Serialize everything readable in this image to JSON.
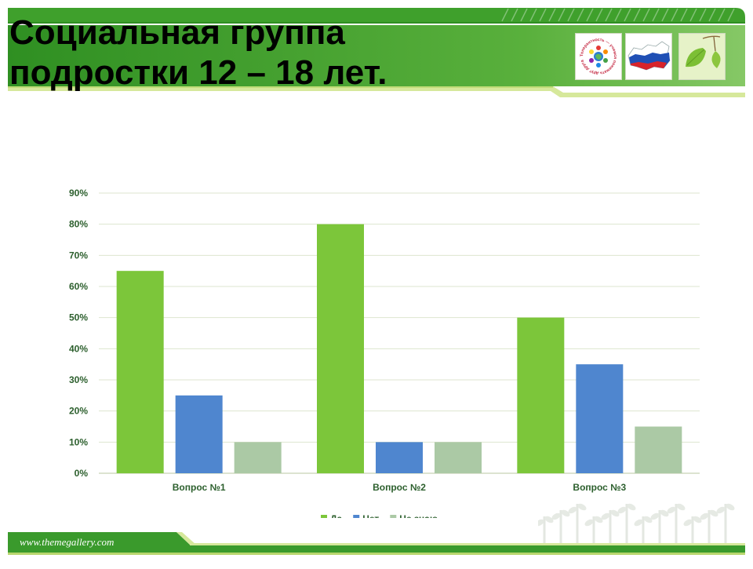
{
  "slide": {
    "title_line1": "Социальная группа",
    "title_line2": "подростки 12 – 18 лет.",
    "footer_url": "www.themegallery.com",
    "logo_ring_text": "Толерантность — учимся понимать друг друга"
  },
  "colors": {
    "header_green": "#3a9a2c",
    "header_light": "#7cc35a",
    "accent_lime": "#d6e89b",
    "series_yes": "#7cc63a",
    "series_no": "#4f86cf",
    "series_dontknow": "#abc9a5",
    "axis_text": "#2c5f2d"
  },
  "chart_data": {
    "type": "bar",
    "categories": [
      "Вопрос №1",
      "Вопрос №2",
      "Вопрос №3"
    ],
    "series": [
      {
        "name": "Да",
        "values": [
          65,
          80,
          50
        ],
        "color": "#7cc63a"
      },
      {
        "name": "Нет",
        "values": [
          25,
          10,
          35
        ],
        "color": "#4f86cf"
      },
      {
        "name": "Не знаю",
        "values": [
          10,
          10,
          15
        ],
        "color": "#abc9a5"
      }
    ],
    "yticks": [
      "0%",
      "10%",
      "20%",
      "30%",
      "40%",
      "50%",
      "60%",
      "70%",
      "80%",
      "90%"
    ],
    "ylim": [
      0,
      90
    ],
    "y_unit": "%",
    "grid": true,
    "legend_position": "bottom"
  }
}
